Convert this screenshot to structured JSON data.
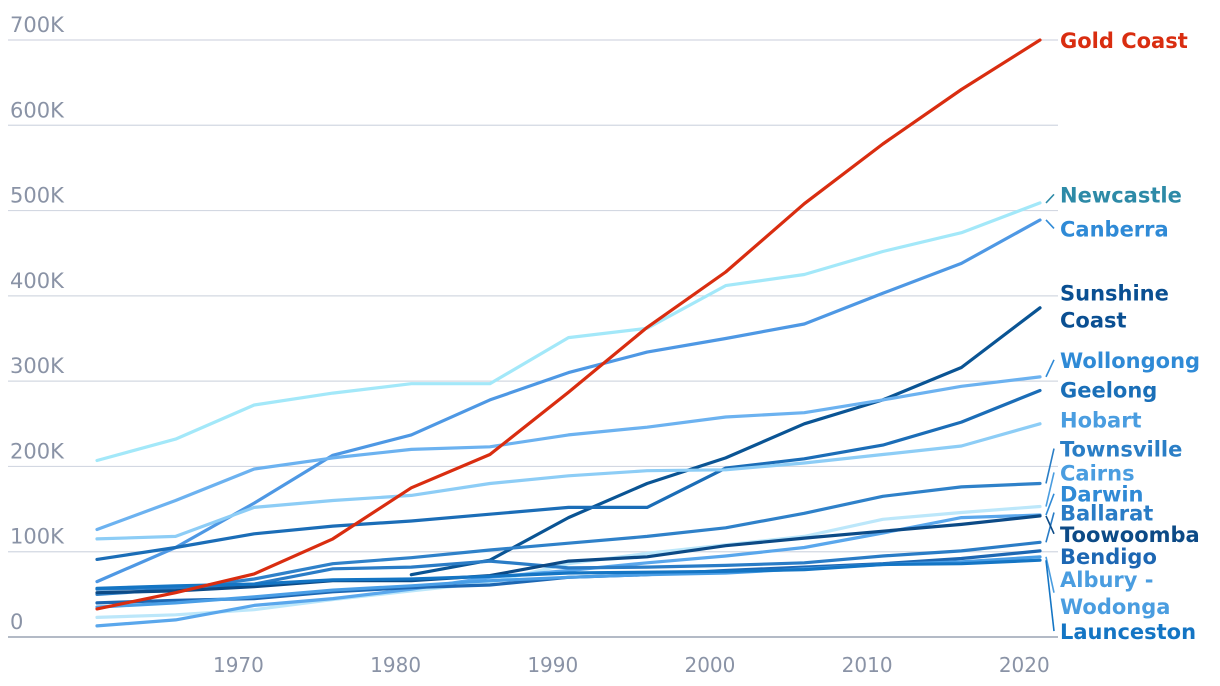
{
  "chart_data": {
    "type": "line",
    "title": "",
    "xlabel": "",
    "ylabel": "",
    "xlim": [
      1961,
      2021
    ],
    "ylim": [
      0,
      700000
    ],
    "x_ticks": [
      1970,
      1980,
      1990,
      2000,
      2010,
      2020
    ],
    "x_tick_labels": [
      "1970",
      "1980",
      "1990",
      "2000",
      "2010",
      "2020"
    ],
    "y_ticks": [
      0,
      100000,
      200000,
      300000,
      400000,
      500000,
      600000,
      700000
    ],
    "y_tick_labels": [
      "0",
      "100K",
      "200K",
      "300K",
      "400K",
      "500K",
      "600K",
      "700K"
    ],
    "grid": "horizontal",
    "legend": "direct labels at right end of each line",
    "series": [
      {
        "name": "Gold Coast",
        "color": "#d92d10",
        "x": [
          1961,
          1966,
          1971,
          1976,
          1981,
          1986,
          1991,
          1996,
          2001,
          2006,
          2011,
          2016,
          2021
        ],
        "y": [
          33000,
          52000,
          74000,
          115000,
          175000,
          214000,
          287000,
          363000,
          428000,
          508000,
          578000,
          642000,
          700000
        ]
      },
      {
        "name": "Newcastle",
        "color": "#a3e8f9",
        "x": [
          1961,
          1966,
          1971,
          1976,
          1981,
          1986,
          1991,
          1996,
          2001,
          2006,
          2011,
          2016,
          2021
        ],
        "y": [
          207000,
          232000,
          272000,
          286000,
          297000,
          297000,
          351000,
          362000,
          412000,
          425000,
          452000,
          474000,
          509000
        ]
      },
      {
        "name": "Canberra",
        "color": "#4e98e4",
        "x": [
          1961,
          1966,
          1971,
          1976,
          1981,
          1986,
          1991,
          1996,
          2001,
          2006,
          2011,
          2016,
          2021
        ],
        "y": [
          65000,
          105000,
          157000,
          213000,
          237000,
          278000,
          310000,
          334000,
          350000,
          367000,
          403000,
          438000,
          489000
        ]
      },
      {
        "name": "Sunshine Coast",
        "color": "#0a5494",
        "x": [
          1981,
          1986,
          1991,
          1996,
          2001,
          2006,
          2011,
          2016,
          2021
        ],
        "y": [
          73000,
          90000,
          140000,
          180000,
          210000,
          250000,
          278000,
          316000,
          386000
        ]
      },
      {
        "name": "Wollongong",
        "color": "#6cb2f0",
        "x": [
          1961,
          1966,
          1971,
          1976,
          1981,
          1986,
          1991,
          1996,
          2001,
          2006,
          2011,
          2016,
          2021
        ],
        "y": [
          126000,
          160000,
          197000,
          210000,
          220000,
          223000,
          237000,
          246000,
          258000,
          263000,
          278000,
          294000,
          305000
        ]
      },
      {
        "name": "Geelong",
        "color": "#1b6db7",
        "x": [
          1961,
          1966,
          1971,
          1976,
          1981,
          1986,
          1991,
          1996,
          2001,
          2006,
          2011,
          2016,
          2021
        ],
        "y": [
          91000,
          105000,
          121000,
          130000,
          136000,
          144000,
          152000,
          152000,
          198000,
          209000,
          225000,
          252000,
          289000
        ]
      },
      {
        "name": "Hobart",
        "color": "#8dcdf6",
        "x": [
          1961,
          1966,
          1971,
          1976,
          1981,
          1986,
          1991,
          1996,
          2001,
          2006,
          2011,
          2016,
          2021
        ],
        "y": [
          115000,
          118000,
          152000,
          160000,
          166000,
          180000,
          189000,
          195000,
          196000,
          204000,
          214000,
          224000,
          250000
        ]
      },
      {
        "name": "Townsville",
        "color": "#2f81c9",
        "x": [
          1961,
          1966,
          1971,
          1976,
          1981,
          1986,
          1991,
          1996,
          2001,
          2006,
          2011,
          2016,
          2021
        ],
        "y": [
          50000,
          56000,
          68000,
          86000,
          93000,
          102000,
          110000,
          118000,
          128000,
          145000,
          165000,
          176000,
          180000
        ]
      },
      {
        "name": "Cairns",
        "color": "#bce7fa",
        "x": [
          1961,
          1966,
          1971,
          1976,
          1981,
          1986,
          1991,
          1996,
          2001,
          2006,
          2011,
          2016,
          2021
        ],
        "y": [
          23000,
          26000,
          32000,
          44000,
          54000,
          64000,
          86000,
          98000,
          108000,
          118000,
          138000,
          146000,
          153000
        ]
      },
      {
        "name": "Darwin",
        "color": "#5aa7ec",
        "x": [
          1961,
          1966,
          1971,
          1976,
          1981,
          1986,
          1991,
          1996,
          2001,
          2006,
          2011,
          2016,
          2021
        ],
        "y": [
          13000,
          20000,
          37000,
          45000,
          56000,
          70000,
          78000,
          87000,
          95000,
          105000,
          122000,
          140000,
          143000
        ]
      },
      {
        "name": "Ballarat",
        "color": "#2a7cc6",
        "x": [
          1961,
          1966,
          1971,
          1976,
          1981,
          1986,
          1991,
          1996,
          2001,
          2006,
          2011,
          2016,
          2021
        ],
        "y": [
          56000,
          58000,
          62000,
          80000,
          82000,
          89000,
          81000,
          82000,
          84000,
          87000,
          95000,
          101000,
          111000
        ]
      },
      {
        "name": "Toowoomba",
        "color": "#0c4a86",
        "x": [
          1961,
          1966,
          1971,
          1976,
          1981,
          1986,
          1991,
          1996,
          2001,
          2006,
          2011,
          2016,
          2021
        ],
        "y": [
          52000,
          54000,
          59000,
          66000,
          66000,
          72000,
          89000,
          94000,
          107000,
          116000,
          124000,
          132000,
          142000
        ]
      },
      {
        "name": "Bendigo",
        "color": "#1d67b3",
        "x": [
          1961,
          1966,
          1971,
          1976,
          1981,
          1986,
          1991,
          1996,
          2001,
          2006,
          2011,
          2016,
          2021
        ],
        "y": [
          40000,
          43000,
          45000,
          53000,
          58000,
          61000,
          70000,
          73000,
          78000,
          82000,
          86000,
          92000,
          101000
        ]
      },
      {
        "name": "Albury - Wodonga",
        "color": "#4a9ee6",
        "x": [
          1961,
          1966,
          1971,
          1976,
          1981,
          1986,
          1991,
          1996,
          2001,
          2006,
          2011,
          2016,
          2021
        ],
        "y": [
          35000,
          40000,
          47000,
          55000,
          60000,
          66000,
          70000,
          73000,
          75000,
          80000,
          85000,
          88000,
          94000
        ]
      },
      {
        "name": "Launceston",
        "color": "#1475c4",
        "x": [
          1961,
          1966,
          1971,
          1976,
          1981,
          1986,
          1991,
          1996,
          2001,
          2006,
          2011,
          2016,
          2021
        ],
        "y": [
          57000,
          60000,
          62000,
          67000,
          68000,
          71000,
          75000,
          76000,
          77000,
          79000,
          85000,
          86000,
          90000
        ]
      }
    ],
    "labels": [
      {
        "series": "Gold Coast",
        "lines": [
          "Gold Coast"
        ],
        "color": "#d92d10",
        "y": 700000
      },
      {
        "series": "Newcastle",
        "lines": [
          "Newcastle"
        ],
        "color": "#2d8aa7",
        "y": 519000
      },
      {
        "series": "Canberra",
        "lines": [
          "Canberra"
        ],
        "color": "#2f8ad6",
        "y": 479000
      },
      {
        "series": "Sunshine Coast",
        "lines": [
          "Sunshine",
          "Coast"
        ],
        "color": "#0a4f92",
        "y": 388000
      },
      {
        "series": "Wollongong",
        "lines": [
          "Wollongong"
        ],
        "color": "#2f8ad6",
        "y": 325000
      },
      {
        "series": "Geelong",
        "lines": [
          "Geelong"
        ],
        "color": "#1a6fb8",
        "y": 290000
      },
      {
        "series": "Hobart",
        "lines": [
          "Hobart"
        ],
        "color": "#4a9de0",
        "y": 255000
      },
      {
        "series": "Townsville",
        "lines": [
          "Townsville"
        ],
        "color": "#2a7ec6",
        "y": 221000
      },
      {
        "series": "Cairns",
        "lines": [
          "Cairns"
        ],
        "color": "#4a9de0",
        "y": 193000
      },
      {
        "series": "Darwin",
        "lines": [
          "Darwin"
        ],
        "color": "#2f8ad6",
        "y": 168000
      },
      {
        "series": "Ballarat",
        "lines": [
          "Ballarat"
        ],
        "color": "#2a7cc6",
        "y": 146000
      },
      {
        "series": "Toowoomba",
        "lines": [
          "Toowoomba"
        ],
        "color": "#0c4a86",
        "y": 121000
      },
      {
        "series": "Bendigo",
        "lines": [
          "Bendigo"
        ],
        "color": "#1d67b3",
        "y": 95000
      },
      {
        "series": "Albury - Wodonga",
        "lines": [
          "Albury -",
          "Wodonga"
        ],
        "color": "#4a9de0",
        "y": 52000
      },
      {
        "series": "Launceston",
        "lines": [
          "Launceston"
        ],
        "color": "#1475c4",
        "y": 7000
      }
    ]
  }
}
